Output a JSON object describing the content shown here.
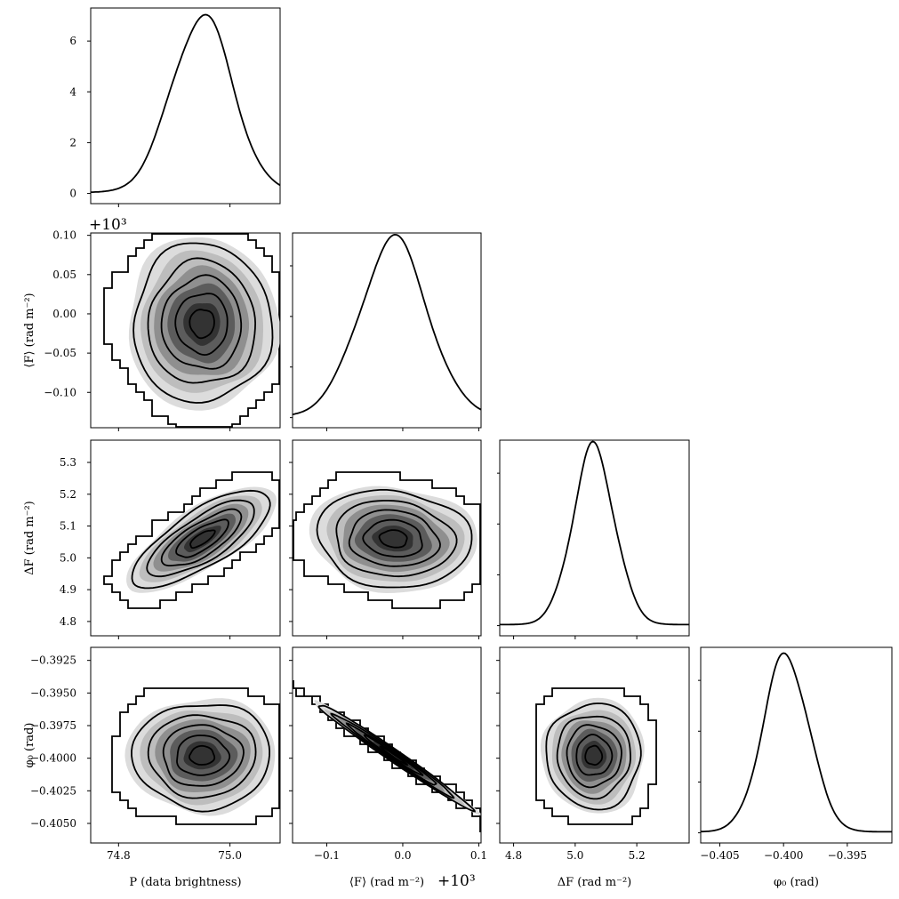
{
  "chart_data": {
    "type": "corner",
    "parameters": [
      {
        "key": "P",
        "label": "P (data brightness)",
        "range": [
          74.75,
          75.09
        ],
        "ticks": [
          {
            "v": 74.8,
            "label": "74.8"
          },
          {
            "v": 75.0,
            "label": "75.0"
          }
        ],
        "offset": "",
        "mean": 74.95,
        "sd": 0.055
      },
      {
        "key": "F_mean",
        "label": "⟨F⟩ (rad m⁻²)",
        "ylabel": "⟨F⟩ (rad m⁻²)",
        "range": [
          -0.145,
          0.103
        ],
        "ticks": [
          {
            "v": -0.1,
            "label": "−0.1"
          },
          {
            "v": 0.0,
            "label": "0.0"
          },
          {
            "v": 0.1,
            "label": "0.1"
          }
        ],
        "yticks": [
          {
            "v": -0.1,
            "label": "−0.10"
          },
          {
            "v": -0.05,
            "label": "−0.05"
          },
          {
            "v": 0.0,
            "label": "0.00"
          },
          {
            "v": 0.05,
            "label": "0.05"
          },
          {
            "v": 0.1,
            "label": "0.10"
          }
        ],
        "offset": "+10³",
        "mean": -0.012,
        "sd": 0.045
      },
      {
        "key": "dF",
        "label": "ΔF (rad m⁻²)",
        "range": [
          4.755,
          5.37
        ],
        "ticks": [
          {
            "v": 4.8,
            "label": "4.8"
          },
          {
            "v": 5.0,
            "label": "5.0"
          },
          {
            "v": 5.2,
            "label": "5.2"
          }
        ],
        "yticks": [
          {
            "v": 4.8,
            "label": "4.8"
          },
          {
            "v": 4.9,
            "label": "4.9"
          },
          {
            "v": 5.0,
            "label": "5.0"
          },
          {
            "v": 5.1,
            "label": "5.1"
          },
          {
            "v": 5.2,
            "label": "5.2"
          },
          {
            "v": 5.3,
            "label": "5.3"
          }
        ],
        "offset": "",
        "mean": 5.06,
        "sd": 0.068
      },
      {
        "key": "phi0",
        "label": "φ₀ (rad)",
        "range": [
          -0.4065,
          -0.3915
        ],
        "ticks": [
          {
            "v": -0.405,
            "label": "−0.405"
          },
          {
            "v": -0.4,
            "label": "−0.400"
          },
          {
            "v": -0.395,
            "label": "−0.395"
          }
        ],
        "yticks": [
          {
            "v": -0.405,
            "label": "−0.4050"
          },
          {
            "v": -0.4025,
            "label": "−0.4025"
          },
          {
            "v": -0.4,
            "label": "−0.4000"
          },
          {
            "v": -0.3975,
            "label": "−0.3975"
          },
          {
            "v": -0.395,
            "label": "−0.3950"
          },
          {
            "v": -0.3925,
            "label": "−0.3925"
          }
        ],
        "offset": "",
        "mean": -0.3998,
        "sd": 0.0018
      }
    ],
    "diagonal_density_axis": {
      "range": [
        -0.4,
        7.3
      ],
      "ticks": [
        {
          "v": 0,
          "label": "0"
        },
        {
          "v": 2,
          "label": "2"
        },
        {
          "v": 4,
          "label": "4"
        },
        {
          "v": 6,
          "label": "6"
        }
      ],
      "peak": 6.95
    },
    "correlations": {
      "1-0": 0.0,
      "2-0": 0.75,
      "2-1": -0.1,
      "3-0": 0.0,
      "3-1": -0.99,
      "3-2": 0.0
    },
    "fill_colors": [
      "#dcdcdc",
      "#bdbdbd",
      "#8f8f8f",
      "#5c5c5c",
      "#333333"
    ],
    "line_color": "#000000"
  }
}
